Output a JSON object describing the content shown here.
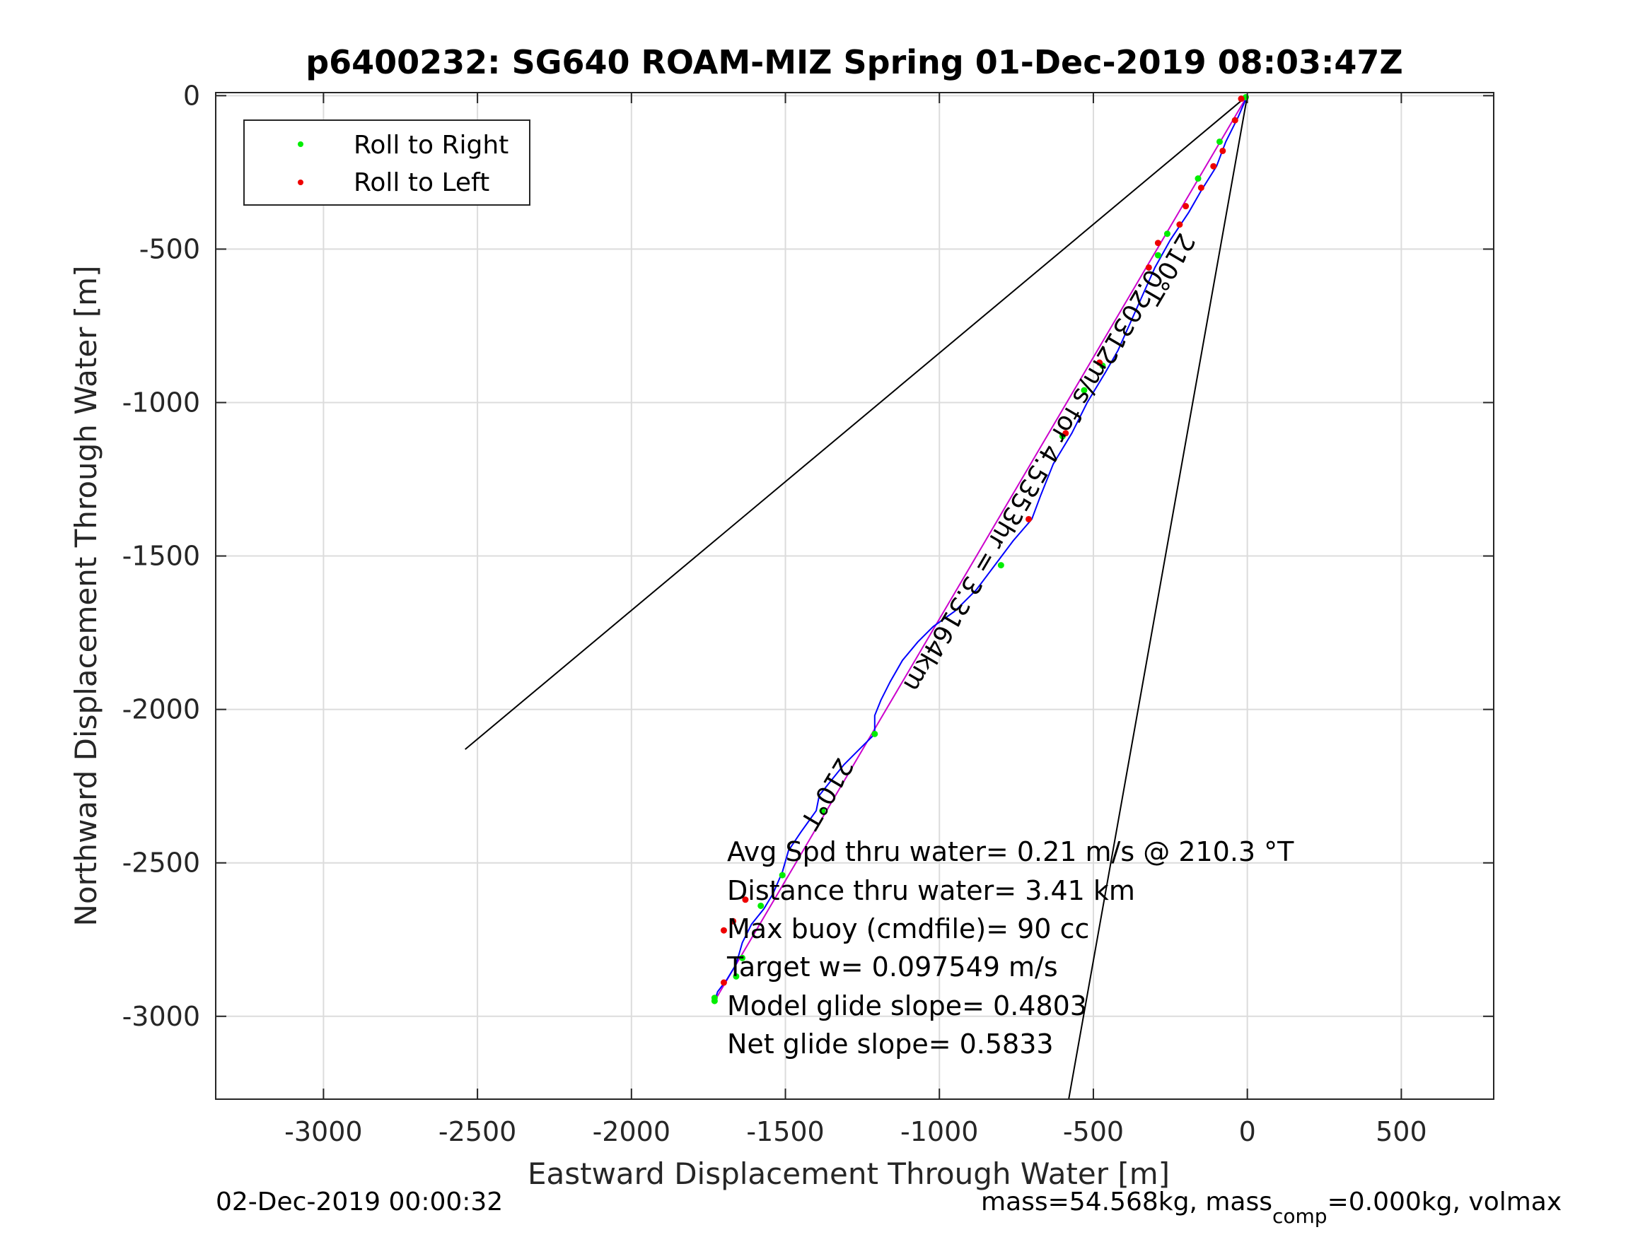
{
  "chart_data": {
    "type": "line",
    "title": "p6400232: SG640 ROAM-MIZ Spring 01-Dec-2019 08:03:47Z",
    "xlabel": "Eastward Displacement Through Water [m]",
    "ylabel": "Northward Displacement Through Water [m]",
    "xlim": [
      -3350,
      800
    ],
    "ylim": [
      -3270,
      10
    ],
    "xticks": [
      -3000,
      -2500,
      -2000,
      -1500,
      -1000,
      -500,
      0,
      500
    ],
    "yticks": [
      0,
      -500,
      -1000,
      -1500,
      -2000,
      -2500,
      -3000
    ],
    "xtick_labels": [
      "-3000",
      "-2500",
      "-2000",
      "-1500",
      "-1000",
      "-500",
      "0",
      "500"
    ],
    "ytick_labels": [
      "0",
      "-500",
      "-1000",
      "-1500",
      "-2000",
      "-2500",
      "-3000"
    ],
    "grid": true,
    "legend_placement": "top-left",
    "legend": [
      {
        "label": "Roll to Right",
        "color": "#00ee00"
      },
      {
        "label": "Roll to Left",
        "color": "#ee0000"
      }
    ],
    "colors": {
      "track": "#0000ff",
      "net": "#cc00cc",
      "reference": "#000000"
    },
    "track": [
      [
        0,
        0
      ],
      [
        -30,
        -70
      ],
      [
        -70,
        -150
      ],
      [
        -100,
        -230
      ],
      [
        -150,
        -310
      ],
      [
        -190,
        -380
      ],
      [
        -250,
        -470
      ],
      [
        -300,
        -560
      ],
      [
        -340,
        -650
      ],
      [
        -380,
        -740
      ],
      [
        -420,
        -830
      ],
      [
        -460,
        -900
      ],
      [
        -520,
        -1000
      ],
      [
        -570,
        -1100
      ],
      [
        -630,
        -1200
      ],
      [
        -670,
        -1300
      ],
      [
        -700,
        -1380
      ],
      [
        -760,
        -1450
      ],
      [
        -820,
        -1530
      ],
      [
        -880,
        -1610
      ],
      [
        -950,
        -1680
      ],
      [
        -1020,
        -1730
      ],
      [
        -1070,
        -1780
      ],
      [
        -1120,
        -1840
      ],
      [
        -1160,
        -1910
      ],
      [
        -1190,
        -1970
      ],
      [
        -1210,
        -2020
      ],
      [
        -1210,
        -2080
      ],
      [
        -1260,
        -2130
      ],
      [
        -1310,
        -2180
      ],
      [
        -1350,
        -2230
      ],
      [
        -1390,
        -2280
      ],
      [
        -1400,
        -2330
      ],
      [
        -1450,
        -2400
      ],
      [
        -1490,
        -2460
      ],
      [
        -1510,
        -2530
      ],
      [
        -1540,
        -2600
      ],
      [
        -1570,
        -2650
      ],
      [
        -1610,
        -2700
      ],
      [
        -1640,
        -2760
      ],
      [
        -1660,
        -2830
      ],
      [
        -1690,
        -2880
      ],
      [
        -1720,
        -2920
      ],
      [
        -1730,
        -2950
      ]
    ],
    "net_track": [
      [
        0,
        0
      ],
      [
        -1730,
        -2950
      ]
    ],
    "reference_lines": [
      [
        [
          0,
          0
        ],
        [
          -2540,
          -2130
        ]
      ],
      [
        [
          0,
          0
        ],
        [
          -580,
          -3270
        ]
      ]
    ],
    "roll_right_points": [
      [
        -5,
        -5
      ],
      [
        -90,
        -150
      ],
      [
        -160,
        -270
      ],
      [
        -260,
        -450
      ],
      [
        -290,
        -520
      ],
      [
        -470,
        -880
      ],
      [
        -530,
        -960
      ],
      [
        -600,
        -1110
      ],
      [
        -800,
        -1530
      ],
      [
        -1210,
        -2080
      ],
      [
        -1380,
        -2330
      ],
      [
        -1510,
        -2540
      ],
      [
        -1580,
        -2640
      ],
      [
        -1640,
        -2810
      ],
      [
        -1660,
        -2870
      ],
      [
        -1730,
        -2940
      ],
      [
        -1730,
        -2950
      ]
    ],
    "roll_left_points": [
      [
        -20,
        -10
      ],
      [
        -40,
        -80
      ],
      [
        -80,
        -180
      ],
      [
        -110,
        -230
      ],
      [
        -150,
        -300
      ],
      [
        -200,
        -360
      ],
      [
        -220,
        -420
      ],
      [
        -290,
        -480
      ],
      [
        -320,
        -560
      ],
      [
        -480,
        -870
      ],
      [
        -590,
        -1100
      ],
      [
        -710,
        -1380
      ],
      [
        -1630,
        -2620
      ],
      [
        -1670,
        -2690
      ],
      [
        -1700,
        -2720
      ],
      [
        -1700,
        -2890
      ]
    ],
    "track_labels": [
      {
        "text": "210°T",
        "x": -280,
        "y": -550
      },
      {
        "text": "0.20312m/s for 4.5353hr = 3.3164km",
        "x": -720,
        "y": -1240
      },
      {
        "text": "210°T",
        "x": -1390,
        "y": -2260
      }
    ],
    "annotations": [
      "Avg Spd thru water=  0.21 m/s @ 210.3 °T",
      "Distance thru water=  3.41 km",
      "Max buoy (cmdfile)= 90 cc",
      "Target w= 0.097549 m/s",
      "Model glide slope= 0.4803",
      "Net glide slope= 0.5833"
    ],
    "footer_left": "02-Dec-2019 00:00:32",
    "footer_right": {
      "prefix": "mass=54.568kg, mass",
      "sub": "comp",
      "suffix": "=0.000kg, volmax"
    }
  }
}
